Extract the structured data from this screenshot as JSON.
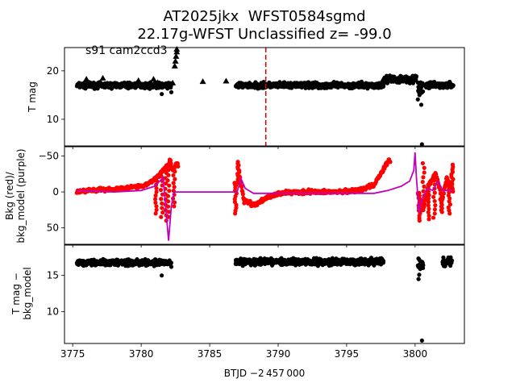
{
  "title_line1": "AT2025jkx  WFST0584sgmd",
  "title_line2": "22.17g-WFST Unclassified z= -99.0",
  "annotation": "s91 cam2ccd3",
  "xlabel": "BTJD −2 457 000",
  "chart_data": [
    {
      "type": "scatter",
      "panel": "top",
      "ylabel": "T mag",
      "xlim": [
        3774.4,
        3803.6
      ],
      "ylim": [
        24.8,
        4.5
      ],
      "y_inverted": true,
      "x_ticks": [
        3775,
        3780,
        3785,
        3790,
        3795,
        3800
      ],
      "y_ticks": [
        10,
        20
      ],
      "vline": {
        "x": 3789.1,
        "color": "#e00000",
        "style": "dashed"
      },
      "series": [
        {
          "marker": "circle",
          "color": "#000000",
          "segments": [
            [
              3775.3,
              3782.2,
              17.0,
              0.6
            ],
            [
              3786.9,
              3797.7,
              17.0,
              0.6
            ],
            [
              3797.8,
              3800.1,
              18.3,
              0.8
            ],
            [
              3800.2,
              3800.6,
              16.5,
              1.5
            ],
            [
              3800.8,
              3802.8,
              17.0,
              0.6
            ]
          ],
          "points": [
            [
              3781.5,
              15.2
            ],
            [
              3782.2,
              15.6
            ],
            [
              3788.3,
              16.5
            ],
            [
              3800.2,
              14.1
            ],
            [
              3800.45,
              13.0
            ],
            [
              3800.5,
              4.6
            ]
          ]
        },
        {
          "marker": "triangle",
          "color": "#000000",
          "points": [
            [
              3776.0,
              18.3
            ],
            [
              3777.2,
              18.5
            ],
            [
              3779.8,
              18.0
            ],
            [
              3780.9,
              18.3
            ],
            [
              3781.2,
              17.6
            ],
            [
              3782.3,
              17.5
            ],
            [
              3782.45,
              21.0
            ],
            [
              3782.5,
              22.0
            ],
            [
              3782.55,
              23.0
            ],
            [
              3782.6,
              23.9
            ],
            [
              3782.6,
              24.6
            ],
            [
              3784.5,
              17.8
            ],
            [
              3786.2,
              17.9
            ],
            [
              3797.7,
              18.4
            ],
            [
              3798.1,
              18.6
            ],
            [
              3802.6,
              17.5
            ]
          ]
        }
      ]
    },
    {
      "type": "scatter",
      "panel": "middle",
      "ylabel": "Bkg (red)/\nbkg_model (purple)",
      "xlim": [
        3774.4,
        3803.6
      ],
      "ylim": [
        -63,
        73
      ],
      "x_ticks": [
        3775,
        3780,
        3785,
        3790,
        3795,
        3800
      ],
      "y_ticks": [
        -50,
        0,
        50
      ],
      "series": [
        {
          "name": "Bkg",
          "color": "#ff0000",
          "marker": "circle",
          "profile": [
            [
              3775.3,
              0
            ],
            [
              3776,
              -2
            ],
            [
              3777,
              -3
            ],
            [
              3778,
              -4
            ],
            [
              3779,
              -5
            ],
            [
              3780,
              -8
            ],
            [
              3780.5,
              -12
            ],
            [
              3781,
              -18
            ],
            [
              3781.5,
              -28
            ],
            [
              3782,
              -38
            ],
            [
              3782.3,
              -32
            ],
            [
              3782.6,
              -38
            ],
            [
              3786.9,
              -10
            ],
            [
              3787.2,
              -22
            ],
            [
              3787.5,
              12
            ],
            [
              3787.9,
              15
            ],
            [
              3788.3,
              18
            ],
            [
              3789.0,
              10
            ],
            [
              3790,
              2
            ],
            [
              3792,
              0
            ],
            [
              3794,
              0
            ],
            [
              3796,
              -3
            ],
            [
              3797,
              -10
            ],
            [
              3797.5,
              -25
            ],
            [
              3798,
              -42
            ],
            [
              3798.1,
              -44
            ],
            [
              3800.3,
              5
            ],
            [
              3800.6,
              25
            ],
            [
              3801,
              -10
            ],
            [
              3801.5,
              -25
            ],
            [
              3802,
              10
            ],
            [
              3802.3,
              -20
            ],
            [
              3802.8,
              0
            ]
          ],
          "spikes": [
            [
              3781.1,
              30
            ],
            [
              3781.5,
              35
            ],
            [
              3781.8,
              40
            ],
            [
              3782.0,
              35
            ],
            [
              3782.1,
              -45
            ],
            [
              3782.4,
              20
            ],
            [
              3782.6,
              -40
            ],
            [
              3786.9,
              30
            ],
            [
              3787.1,
              -42
            ],
            [
              3800.3,
              40
            ],
            [
              3800.6,
              -40
            ],
            [
              3801.0,
              38
            ],
            [
              3801.4,
              36
            ],
            [
              3801.9,
              28
            ],
            [
              3802.5,
              30
            ],
            [
              3802.7,
              -38
            ]
          ]
        },
        {
          "name": "bkg_model",
          "color": "#c000c0",
          "marker": "line",
          "line": [
            [
              3775.3,
              -2
            ],
            [
              3778,
              0
            ],
            [
              3780,
              -2
            ],
            [
              3781.0,
              -8
            ],
            [
              3781.6,
              -20
            ],
            [
              3782.0,
              68
            ],
            [
              3782.2,
              20
            ],
            [
              3782.4,
              0
            ],
            [
              3784,
              0
            ],
            [
              3786.5,
              0
            ],
            [
              3787.0,
              0
            ],
            [
              3787.3,
              -18
            ],
            [
              3787.6,
              -5
            ],
            [
              3788.2,
              2
            ],
            [
              3790,
              2
            ],
            [
              3797,
              2
            ],
            [
              3798,
              -2
            ],
            [
              3799,
              -8
            ],
            [
              3799.6,
              -15
            ],
            [
              3799.9,
              -30
            ],
            [
              3800.0,
              -55
            ],
            [
              3800.1,
              -20
            ],
            [
              3800.3,
              30
            ],
            [
              3800.5,
              10
            ],
            [
              3800.9,
              -5
            ],
            [
              3801.3,
              -2
            ],
            [
              3801.7,
              -15
            ],
            [
              3802.0,
              -2
            ],
            [
              3802.8,
              -2
            ]
          ]
        }
      ]
    },
    {
      "type": "scatter",
      "panel": "bottom",
      "ylabel": "T mag −\nbkg_model",
      "xlim": [
        3774.4,
        3803.6
      ],
      "ylim": [
        19.2,
        5.6
      ],
      "y_inverted": true,
      "x_ticks": [
        3775,
        3780,
        3785,
        3790,
        3795,
        3800
      ],
      "x_tick_labels": [
        "3775",
        "3780",
        "3785",
        "3790",
        "3795",
        "3800"
      ],
      "y_ticks": [
        10,
        15
      ],
      "series": [
        {
          "marker": "circle",
          "color": "#000000",
          "segments": [
            [
              3775.3,
              3782.2,
              16.8,
              0.45
            ],
            [
              3786.9,
              3797.7,
              16.9,
              0.45
            ],
            [
              3800.2,
              3800.6,
              16.6,
              0.9
            ],
            [
              3802.0,
              3802.7,
              16.9,
              0.6
            ]
          ],
          "points": [
            [
              3781.5,
              15.0
            ],
            [
              3782.2,
              16.2
            ],
            [
              3786.9,
              16.6
            ],
            [
              3787.2,
              16.7
            ],
            [
              3788.3,
              16.4
            ],
            [
              3800.25,
              14.5
            ],
            [
              3800.3,
              15.1
            ],
            [
              3800.5,
              6.0
            ]
          ]
        }
      ]
    }
  ]
}
